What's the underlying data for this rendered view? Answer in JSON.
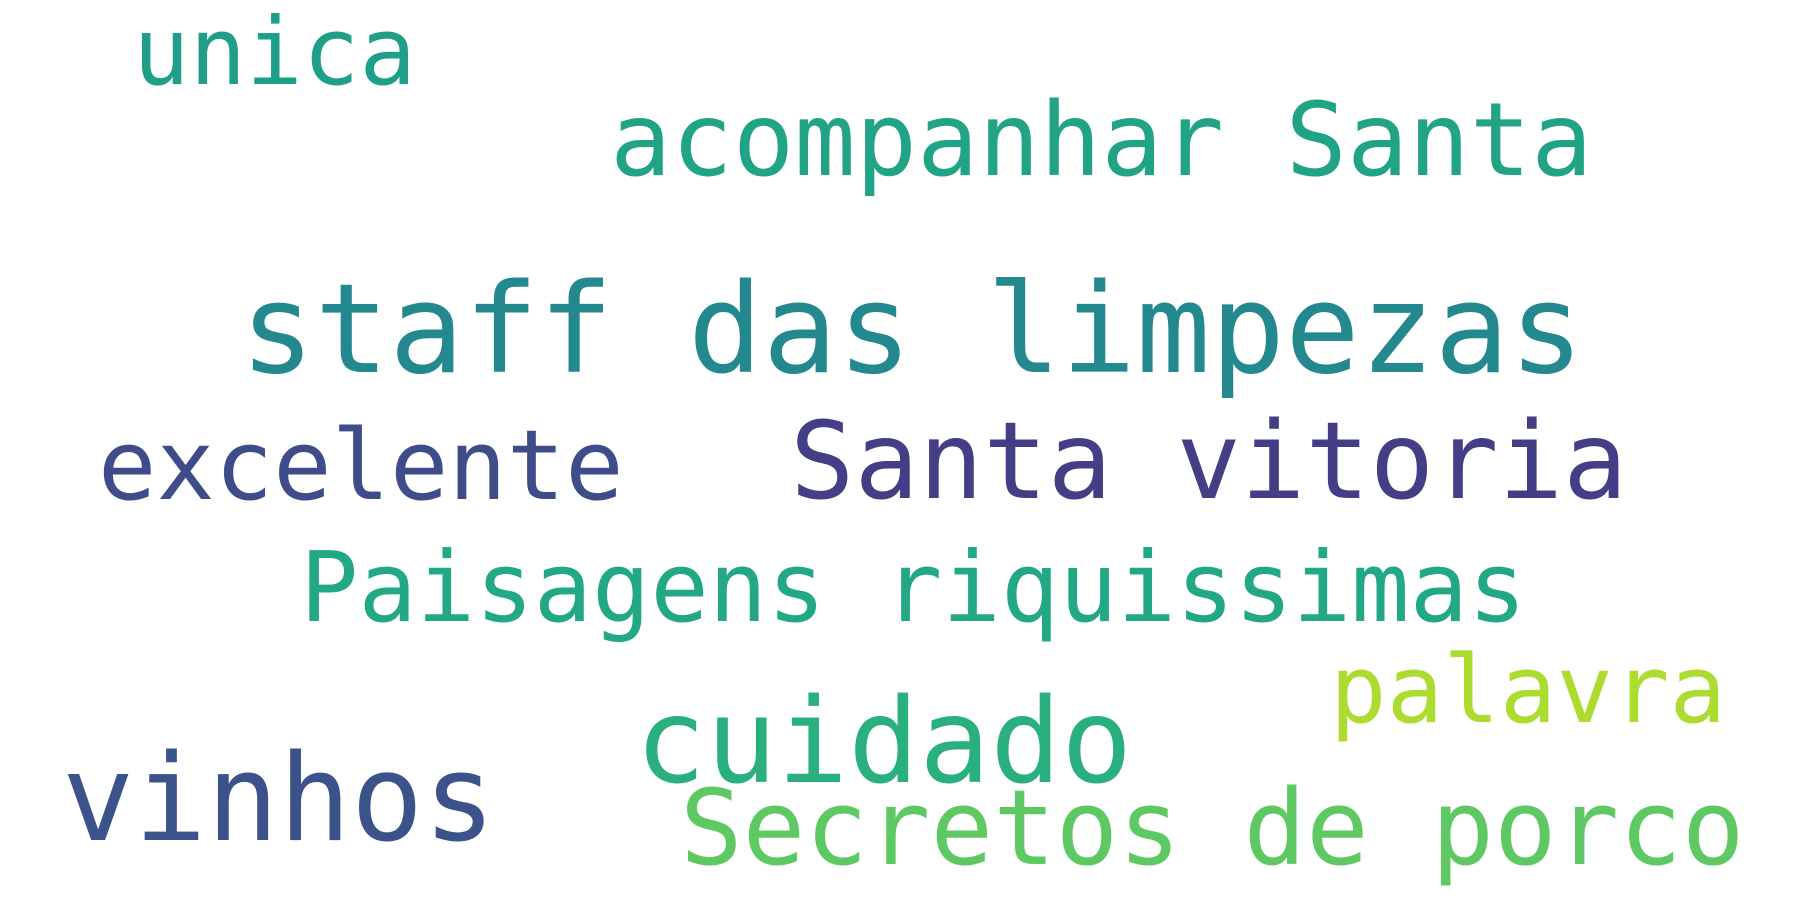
{
  "words": [
    {
      "text": "unica",
      "color": "#1f9e89"
    },
    {
      "text": "acompanhar Santa",
      "color": "#21a386"
    },
    {
      "text": "staff das limpezas",
      "color": "#23898e"
    },
    {
      "text": "excelente",
      "color": "#3e4c8a"
    },
    {
      "text": "Santa vitoria",
      "color": "#433e85"
    },
    {
      "text": "Paisagens riquissimas",
      "color": "#22a884"
    },
    {
      "text": "palavra",
      "color": "#addc30"
    },
    {
      "text": "cuidado",
      "color": "#2ab07f"
    },
    {
      "text": "vinhos",
      "color": "#3b528b"
    },
    {
      "text": "Secretos de porco",
      "color": "#5ec962"
    }
  ]
}
